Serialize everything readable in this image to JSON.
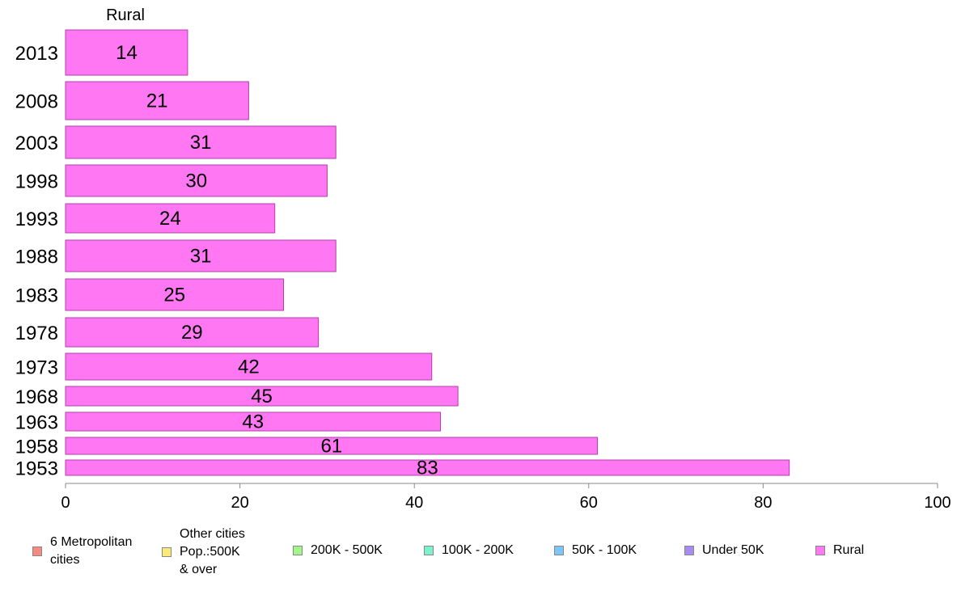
{
  "chart_data": {
    "type": "bar",
    "orientation": "horizontal",
    "panel_title": "Rural",
    "categories": [
      "2013",
      "2008",
      "2003",
      "1998",
      "1993",
      "1988",
      "1983",
      "1978",
      "1973",
      "1968",
      "1963",
      "1958",
      "1953"
    ],
    "series": [
      {
        "name": "Rural",
        "values": [
          14,
          21,
          31,
          30,
          24,
          31,
          25,
          29,
          42,
          45,
          43,
          61,
          83
        ],
        "color": "#ff77f2"
      }
    ],
    "data_labels": [
      "14",
      "21",
      "31",
      "30",
      "24",
      "31",
      "25",
      "29",
      "42",
      "45",
      "43",
      "61",
      "83"
    ],
    "xlim": [
      0,
      100
    ],
    "xticks": [
      0,
      20,
      40,
      60,
      80,
      100
    ],
    "grid": false,
    "legend_position": "bottom",
    "legend": [
      {
        "label": "6 Metropolitan\n cities",
        "color": "#f88a82"
      },
      {
        "label": "Other cities\nPop.:500K\n & over",
        "color": "#fbe97a"
      },
      {
        "label": "200K - 500K",
        "color": "#a4f58a"
      },
      {
        "label": "100K - 200K",
        "color": "#7df2c8"
      },
      {
        "label": "50K - 100K",
        "color": "#7dc4f7"
      },
      {
        "label": "Under 50K",
        "color": "#a98af5"
      },
      {
        "label": "Rural",
        "color": "#ff77f2"
      }
    ]
  }
}
